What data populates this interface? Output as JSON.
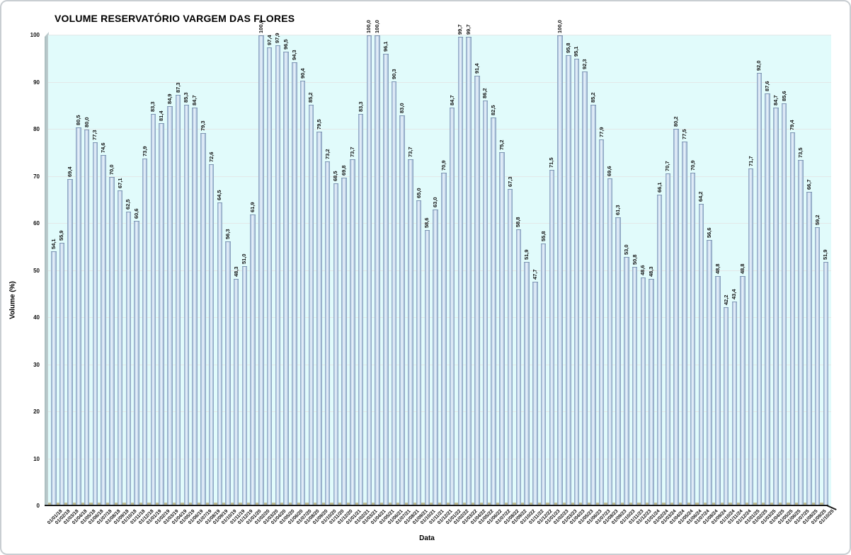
{
  "chart_data": {
    "type": "bar",
    "title": "VOLUME RESERVATÓRIO VARGEM DAS FLORES",
    "xlabel": "Data",
    "ylabel": "Volume (%)",
    "ylim": [
      0,
      100
    ],
    "yticks": [
      0,
      10,
      20,
      30,
      40,
      50,
      60,
      70,
      80,
      90,
      100
    ],
    "grid": true,
    "legend": false,
    "decimal_separator": ",",
    "categories": [
      "01/01/18",
      "01/02/18",
      "01/03/18",
      "01/04/18",
      "01/05/18",
      "01/06/18",
      "01/07/18",
      "01/08/18",
      "01/09/18",
      "01/10/18",
      "01/11/18",
      "01/12/18",
      "01/01/19",
      "01/02/19",
      "01/03/19",
      "01/04/19",
      "01/05/19",
      "01/06/19",
      "01/07/19",
      "01/08/19",
      "01/09/19",
      "01/10/19",
      "01/11/19",
      "01/12/19",
      "01/01/20",
      "01/02/20",
      "01/03/20",
      "01/04/20",
      "01/05/20",
      "01/06/20",
      "01/07/20",
      "01/08/20",
      "01/09/20",
      "01/10/20",
      "01/11/20",
      "01/12/20",
      "01/01/21",
      "01/02/21",
      "01/03/21",
      "01/04/21",
      "01/05/21",
      "01/06/21",
      "01/07/21",
      "01/08/21",
      "01/09/21",
      "01/10/21",
      "01/11/21",
      "01/12/21",
      "01/01/22",
      "01/02/22",
      "01/03/22",
      "01/04/22",
      "01/05/22",
      "01/06/22",
      "01/07/22",
      "01/08/22",
      "01/09/22",
      "01/10/22",
      "01/11/22",
      "01/12/22",
      "01/01/23",
      "01/02/23",
      "01/03/23",
      "01/04/23",
      "01/05/23",
      "01/06/23",
      "01/07/23",
      "01/08/23",
      "01/09/23",
      "01/10/23",
      "01/11/23",
      "01/12/23",
      "01/01/24",
      "01/02/24",
      "01/03/24",
      "01/04/24",
      "01/05/24",
      "01/06/24",
      "01/07/24",
      "01/08/24",
      "01/09/24",
      "01/10/24",
      "01/11/24",
      "01/12/24",
      "01/01/25",
      "01/02/25",
      "01/03/25",
      "01/04/25",
      "01/05/25",
      "01/06/25",
      "01/07/25",
      "01/08/25",
      "01/09/25",
      "01/10/25"
    ],
    "values": [
      54.1,
      55.9,
      69.4,
      80.5,
      80.0,
      77.3,
      74.6,
      70.0,
      67.1,
      62.5,
      60.6,
      73.9,
      83.3,
      81.4,
      84.9,
      87.3,
      85.3,
      84.7,
      79.3,
      72.6,
      64.5,
      56.3,
      48.3,
      51.0,
      61.9,
      100.0,
      97.4,
      97.9,
      96.5,
      94.3,
      90.4,
      85.2,
      79.5,
      73.2,
      68.5,
      69.8,
      73.7,
      83.3,
      100.0,
      100.0,
      96.1,
      90.3,
      83.0,
      73.7,
      65.0,
      58.6,
      63.0,
      70.9,
      84.7,
      99.7,
      99.7,
      91.4,
      86.2,
      82.5,
      75.2,
      67.3,
      58.8,
      51.9,
      47.7,
      55.8,
      71.5,
      100.0,
      95.8,
      95.1,
      92.3,
      85.2,
      77.9,
      69.6,
      61.3,
      53.0,
      50.8,
      48.6,
      48.3,
      66.1,
      70.7,
      80.2,
      77.5,
      70.9,
      64.2,
      56.6,
      48.8,
      42.2,
      43.4,
      48.8,
      71.7,
      92.0,
      87.6,
      84.7,
      85.6,
      79.4,
      73.5,
      66.7,
      59.2,
      51.9
    ],
    "colors": {
      "background": "#ffffff",
      "frame_border": "#c9ced2",
      "plot_bg": "#e1fbfb",
      "gridline": "#e3e8e8",
      "wall": "#a9bcbe",
      "wall_light": "#c6d4d6",
      "floor": "#bebb90",
      "bar_edge": "#7d95b2",
      "bar_mid": "#c2d6eb",
      "bar_highlight": "#edf4fb",
      "axis": "#1a1a1a",
      "text": "#000000"
    }
  }
}
